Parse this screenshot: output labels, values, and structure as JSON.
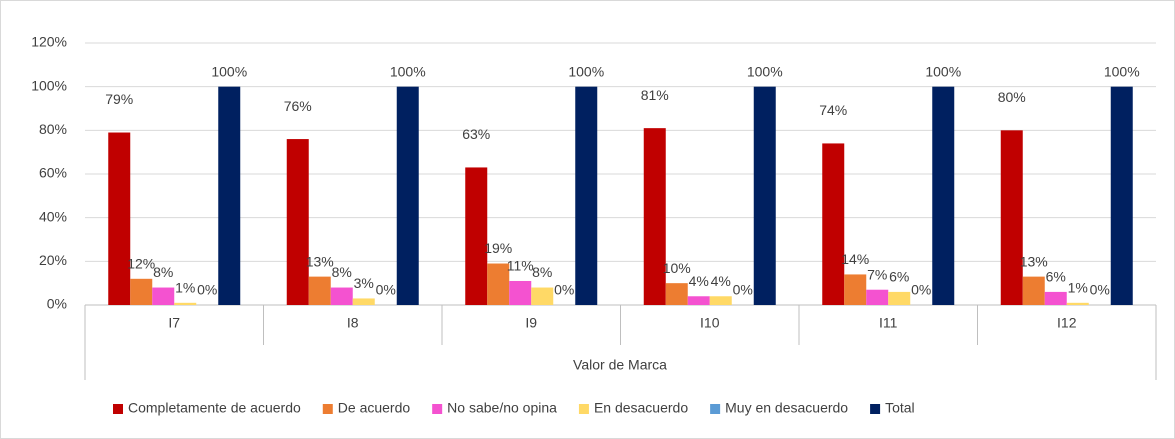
{
  "chart_data": {
    "type": "bar",
    "x_label": "Valor de Marca",
    "categories": [
      "I7",
      "I8",
      "I9",
      "I10",
      "I11",
      "I12"
    ],
    "series": [
      {
        "name": "Completamente de acuerdo",
        "color": "#c00000",
        "values": [
          79,
          76,
          63,
          81,
          74,
          80
        ],
        "value_labels": [
          "79%",
          "76%",
          "63%",
          "81%",
          "74%",
          "80%"
        ]
      },
      {
        "name": "De acuerdo",
        "color": "#ed7d31",
        "values": [
          12,
          13,
          19,
          10,
          14,
          13
        ],
        "value_labels": [
          "12%",
          "13%",
          "19%",
          "10%",
          "14%",
          "13%"
        ]
      },
      {
        "name": "No sabe/no opina",
        "color": "#f452d0",
        "values": [
          8,
          8,
          11,
          4,
          7,
          6
        ],
        "value_labels": [
          "8%",
          "8%",
          "11%",
          "4%",
          "7%",
          "6%"
        ]
      },
      {
        "name": "En desacuerdo",
        "color": "#ffd966",
        "values": [
          1,
          3,
          8,
          4,
          6,
          1
        ],
        "value_labels": [
          "1%",
          "3%",
          "8%",
          "4%",
          "6%",
          "1%"
        ]
      },
      {
        "name": "Muy en desacuerdo",
        "color": "#5b9bd5",
        "values": [
          0,
          0,
          0,
          0,
          0,
          0
        ],
        "value_labels": [
          "0%",
          "0%",
          "0%",
          "0%",
          "0%",
          "0%"
        ]
      },
      {
        "name": "Total",
        "color": "#002060",
        "values": [
          100,
          100,
          100,
          100,
          100,
          100
        ],
        "value_labels": [
          "100%",
          "100%",
          "100%",
          "100%",
          "100%",
          "100%"
        ]
      }
    ],
    "ylim": [
      0,
      120
    ],
    "yticks": [
      {
        "value": 0,
        "label": "0%"
      },
      {
        "value": 20,
        "label": "20%"
      },
      {
        "value": 40,
        "label": "40%"
      },
      {
        "value": 60,
        "label": "60%"
      },
      {
        "value": 80,
        "label": "80%"
      },
      {
        "value": 100,
        "label": "100%"
      },
      {
        "value": 120,
        "label": "120%"
      }
    ],
    "grid": true,
    "legend": "bottom"
  }
}
